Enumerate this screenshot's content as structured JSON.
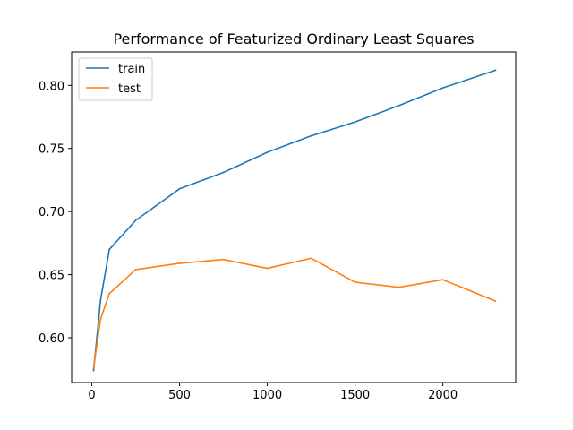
{
  "chart_data": {
    "type": "line",
    "title": "Performance of Featurized Ordinary Least Squares",
    "xlabel": "",
    "ylabel": "",
    "xlim": [
      -115,
      2415
    ],
    "ylim": [
      0.5645,
      0.8265
    ],
    "grid": false,
    "legend_position": "top-left",
    "x_ticks": [
      {
        "value": 0,
        "label": "0"
      },
      {
        "value": 500,
        "label": "500"
      },
      {
        "value": 1000,
        "label": "1000"
      },
      {
        "value": 1500,
        "label": "1500"
      },
      {
        "value": 2000,
        "label": "2000"
      }
    ],
    "y_ticks": [
      {
        "value": 0.6,
        "label": "0.60"
      },
      {
        "value": 0.65,
        "label": "0.65"
      },
      {
        "value": 0.7,
        "label": "0.70"
      },
      {
        "value": 0.75,
        "label": "0.75"
      },
      {
        "value": 0.8,
        "label": "0.80"
      }
    ],
    "series": [
      {
        "name": "train",
        "color": "#1f77b4",
        "x": [
          10,
          50,
          100,
          250,
          500,
          750,
          1000,
          1250,
          1500,
          1750,
          2000,
          2300
        ],
        "values": [
          0.574,
          0.63,
          0.67,
          0.693,
          0.718,
          0.731,
          0.747,
          0.76,
          0.771,
          0.784,
          0.798,
          0.812
        ]
      },
      {
        "name": "test",
        "color": "#ff7f0e",
        "x": [
          10,
          50,
          100,
          250,
          500,
          750,
          1000,
          1250,
          1500,
          1750,
          2000,
          2300
        ],
        "values": [
          0.576,
          0.615,
          0.635,
          0.654,
          0.659,
          0.662,
          0.655,
          0.663,
          0.644,
          0.64,
          0.646,
          0.629
        ]
      }
    ]
  }
}
